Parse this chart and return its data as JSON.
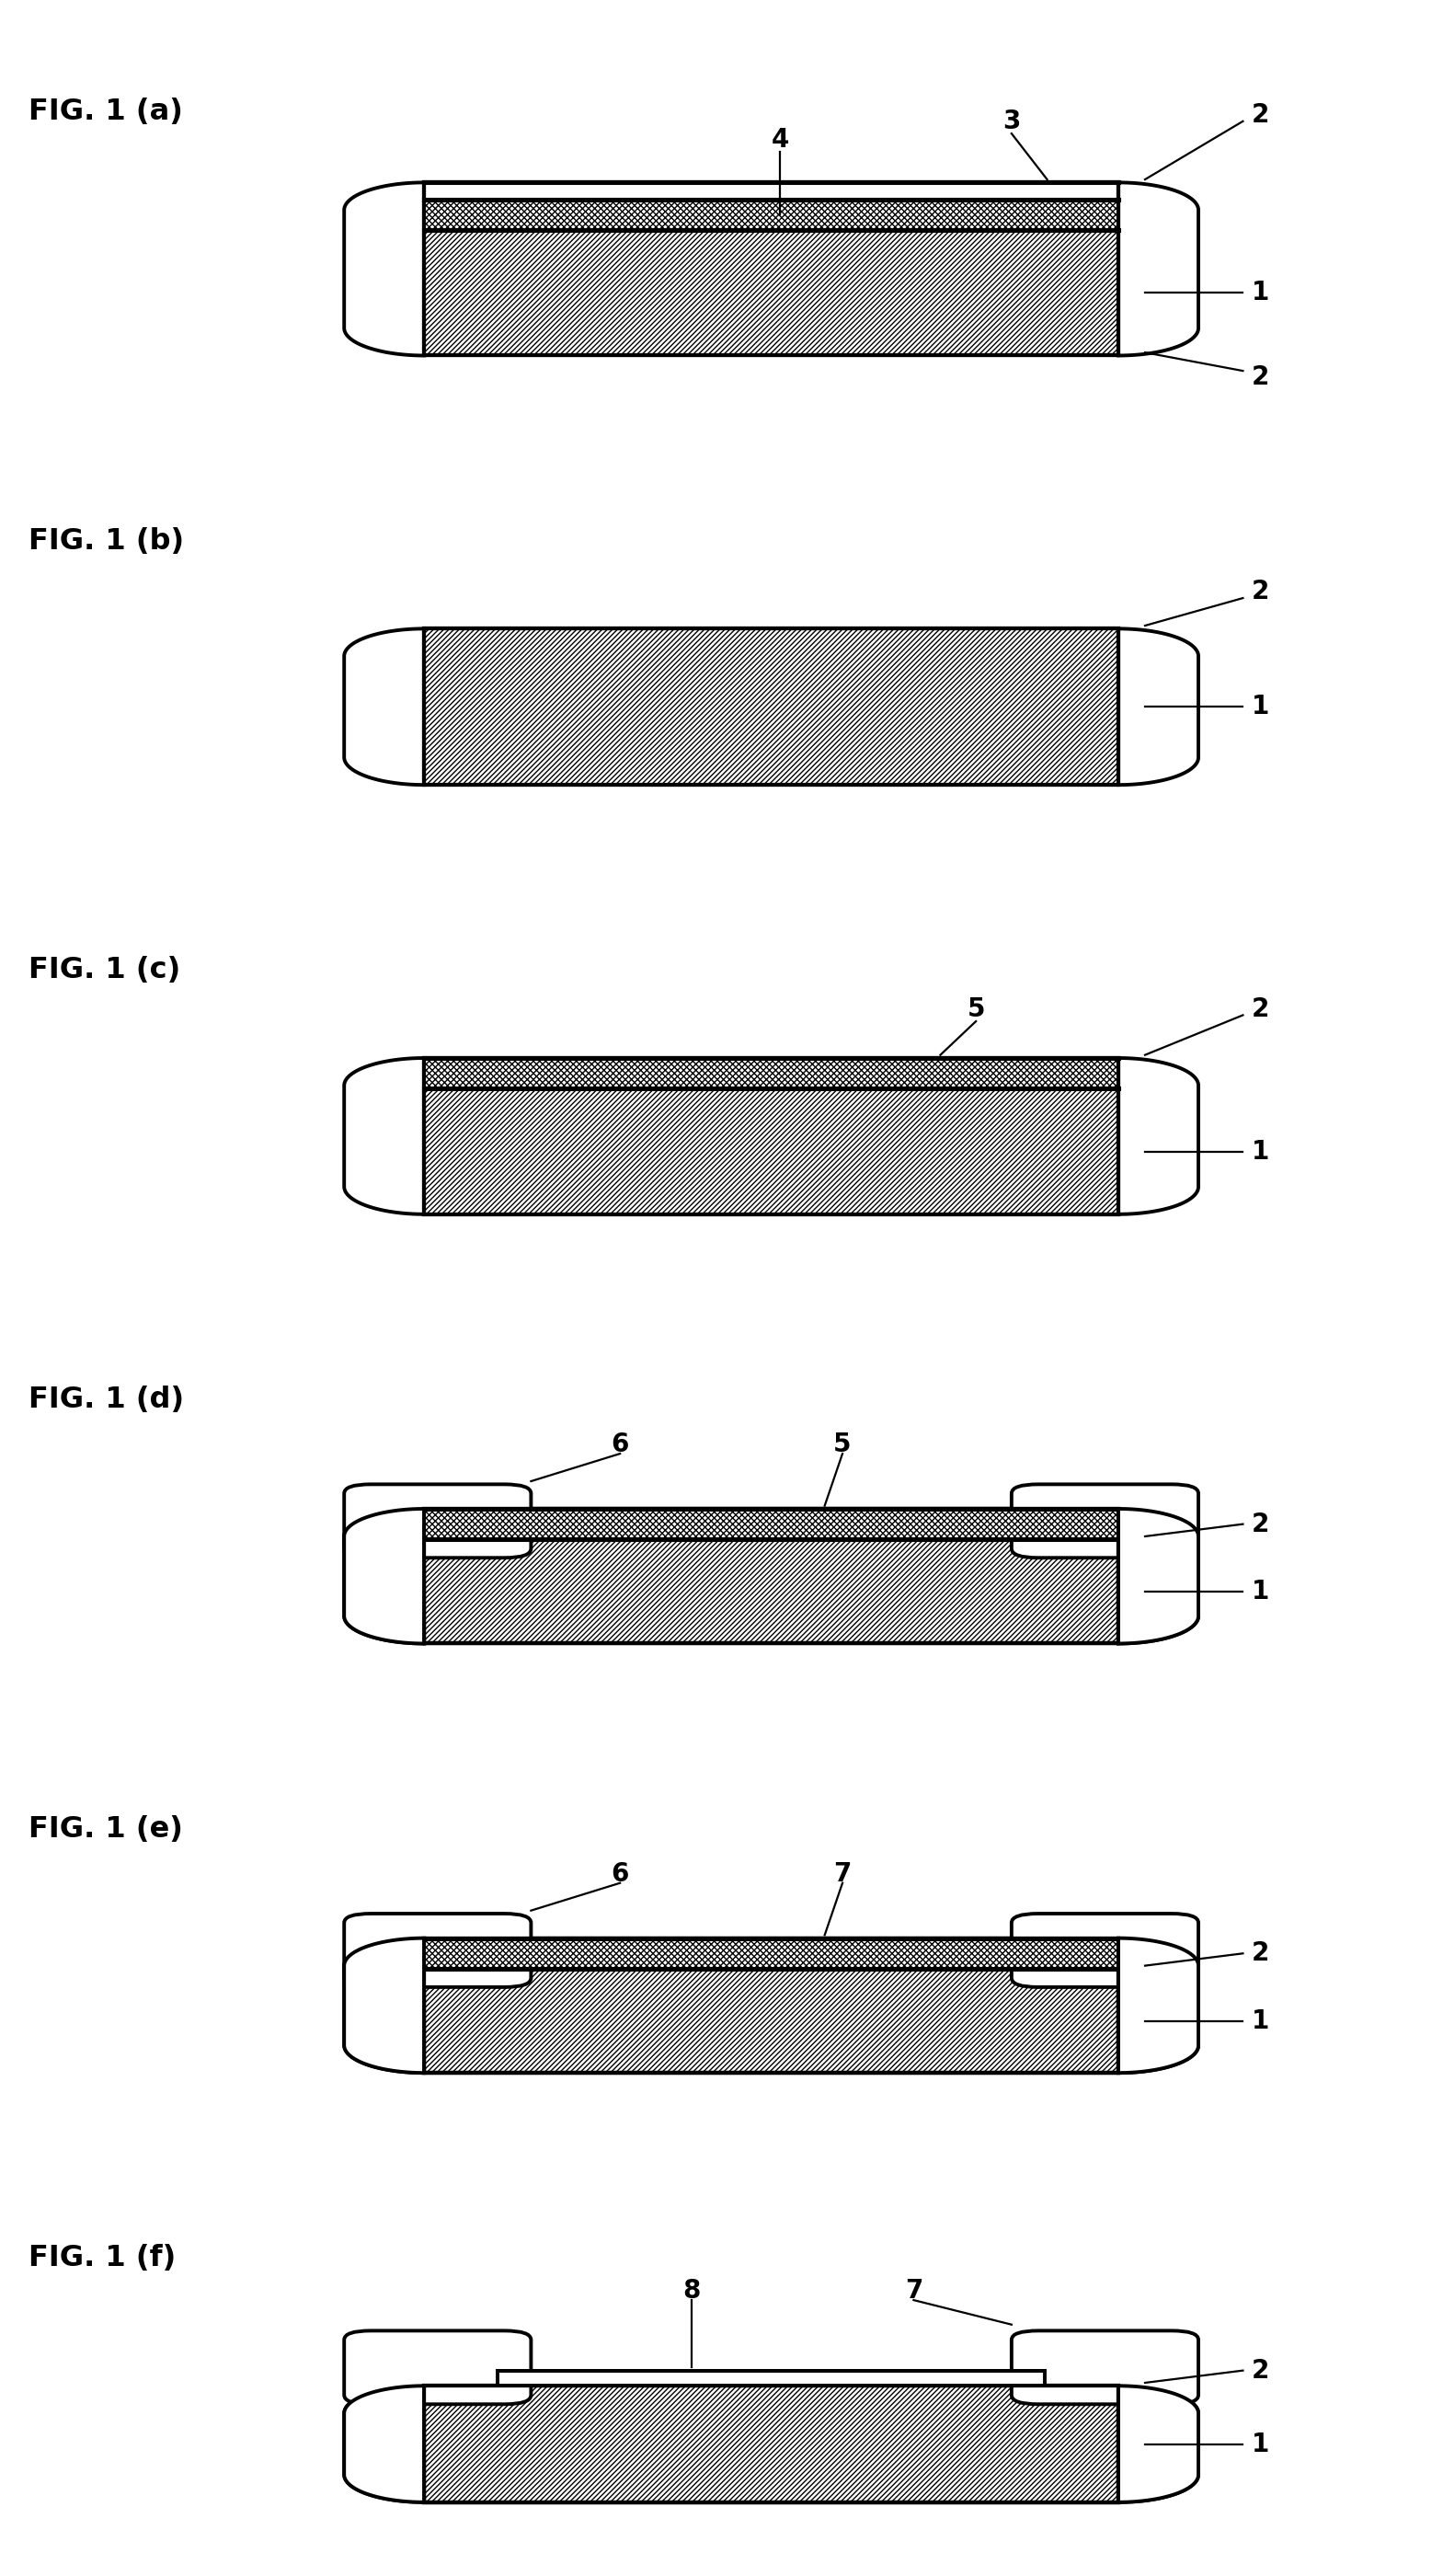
{
  "fig_labels": [
    "FIG. 1 (a)",
    "FIG. 1 (b)",
    "FIG. 1 (c)",
    "FIG. 1 (d)",
    "FIG. 1 (e)",
    "FIG. 1 (f)"
  ],
  "background_color": "#ffffff",
  "panels": [
    "a",
    "b",
    "c",
    "d",
    "e",
    "f"
  ],
  "lw_main": 2.8,
  "lw_thin": 1.6,
  "ann_fs": 20,
  "label_fs": 23
}
